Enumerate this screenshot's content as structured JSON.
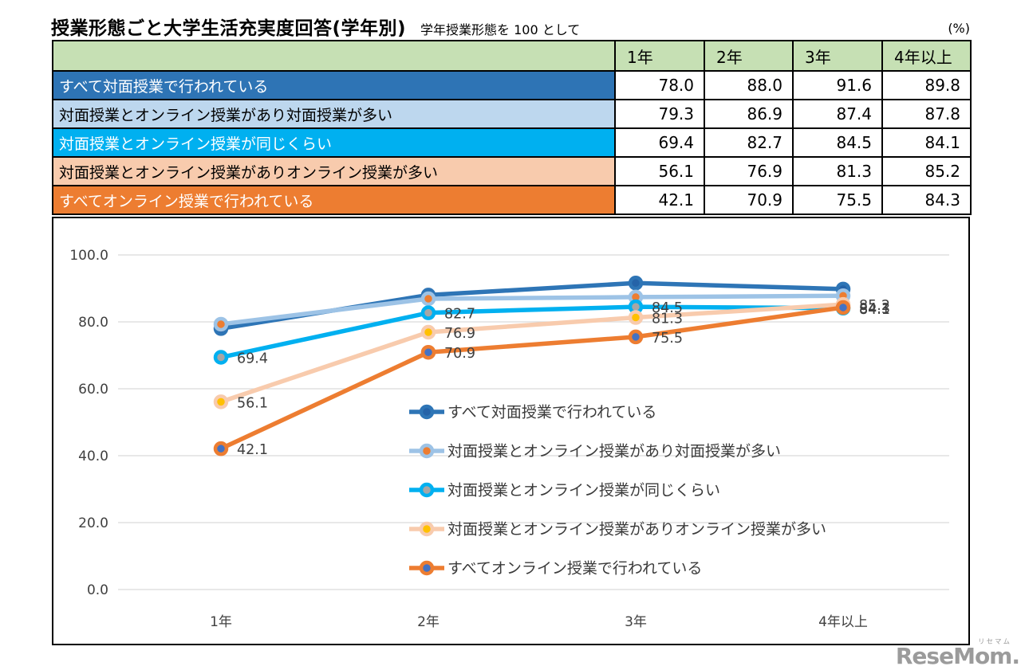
{
  "header": {
    "title": "授業形態ごと大学生活充実度回答(学年別)",
    "subtitle": "学年授業形態を 100 として",
    "unit": "(%)"
  },
  "table": {
    "header_bg": "#C6E0B4",
    "columns": [
      "1年",
      "2年",
      "3年",
      "4年以上"
    ],
    "rows": [
      {
        "label": "すべて対面授業で行われている",
        "values": [
          "78.0",
          "88.0",
          "91.6",
          "89.8"
        ],
        "bg": "#2E74B5",
        "fg": "#FFFFFF"
      },
      {
        "label": "対面授業とオンライン授業があり対面授業が多い",
        "values": [
          "79.3",
          "86.9",
          "87.4",
          "87.8"
        ],
        "bg": "#BDD7EE",
        "fg": "#000000"
      },
      {
        "label": "対面授業とオンライン授業が同じくらい",
        "values": [
          "69.4",
          "82.7",
          "84.5",
          "84.1"
        ],
        "bg": "#00B0F0",
        "fg": "#FFFFFF"
      },
      {
        "label": "対面授業とオンライン授業がありオンライン授業が多い",
        "values": [
          "56.1",
          "76.9",
          "81.3",
          "85.2"
        ],
        "bg": "#F8CBAD",
        "fg": "#000000"
      },
      {
        "label": "すべてオンライン授業で行われている",
        "values": [
          "42.1",
          "70.9",
          "75.5",
          "84.3"
        ],
        "bg": "#ED7D31",
        "fg": "#FFFFFF"
      }
    ]
  },
  "chart_data": {
    "type": "line",
    "title": "",
    "xlabel": "",
    "ylabel": "",
    "categories": [
      "1年",
      "2年",
      "3年",
      "4年以上"
    ],
    "series": [
      {
        "name": "すべて対面授業で行われている",
        "values": [
          78.0,
          88.0,
          91.6,
          89.8
        ],
        "line_color": "#2E75B6",
        "marker_color": "#2563A8",
        "show_labels": false
      },
      {
        "name": "対面授業とオンライン授業があり対面授業が多い",
        "values": [
          79.3,
          86.9,
          87.4,
          87.8
        ],
        "line_color": "#9DC3E6",
        "marker_color": "#ED7D31",
        "show_labels": false
      },
      {
        "name": "対面授業とオンライン授業が同じくらい",
        "values": [
          69.4,
          82.7,
          84.5,
          84.1
        ],
        "line_color": "#00B0F0",
        "marker_color": "#A6A6A6",
        "show_labels": true
      },
      {
        "name": "対面授業とオンライン授業がありオンライン授業が多い",
        "values": [
          56.1,
          76.9,
          81.3,
          85.2
        ],
        "line_color": "#F8CBAD",
        "marker_color": "#FFC000",
        "show_labels": true
      },
      {
        "name": "すべてオンライン授業で行われている",
        "values": [
          42.1,
          70.9,
          75.5,
          84.3
        ],
        "line_color": "#ED7D31",
        "marker_color": "#4472C4",
        "show_labels": true
      }
    ],
    "y_ticks": [
      "100.0",
      "80.0",
      "60.0",
      "40.0",
      "20.0",
      "0.0"
    ],
    "y_tick_values": [
      100,
      80,
      60,
      40,
      20,
      0
    ],
    "ylim": [
      0,
      100
    ],
    "grid": true,
    "grid_color": "#D9D9D9",
    "tick_label_color": "#404040",
    "data_label_color": "#404040",
    "legend_position": "inside-center"
  },
  "footer": {
    "logo_text": "ReseMom.",
    "logo_ruby": "リセマム"
  }
}
